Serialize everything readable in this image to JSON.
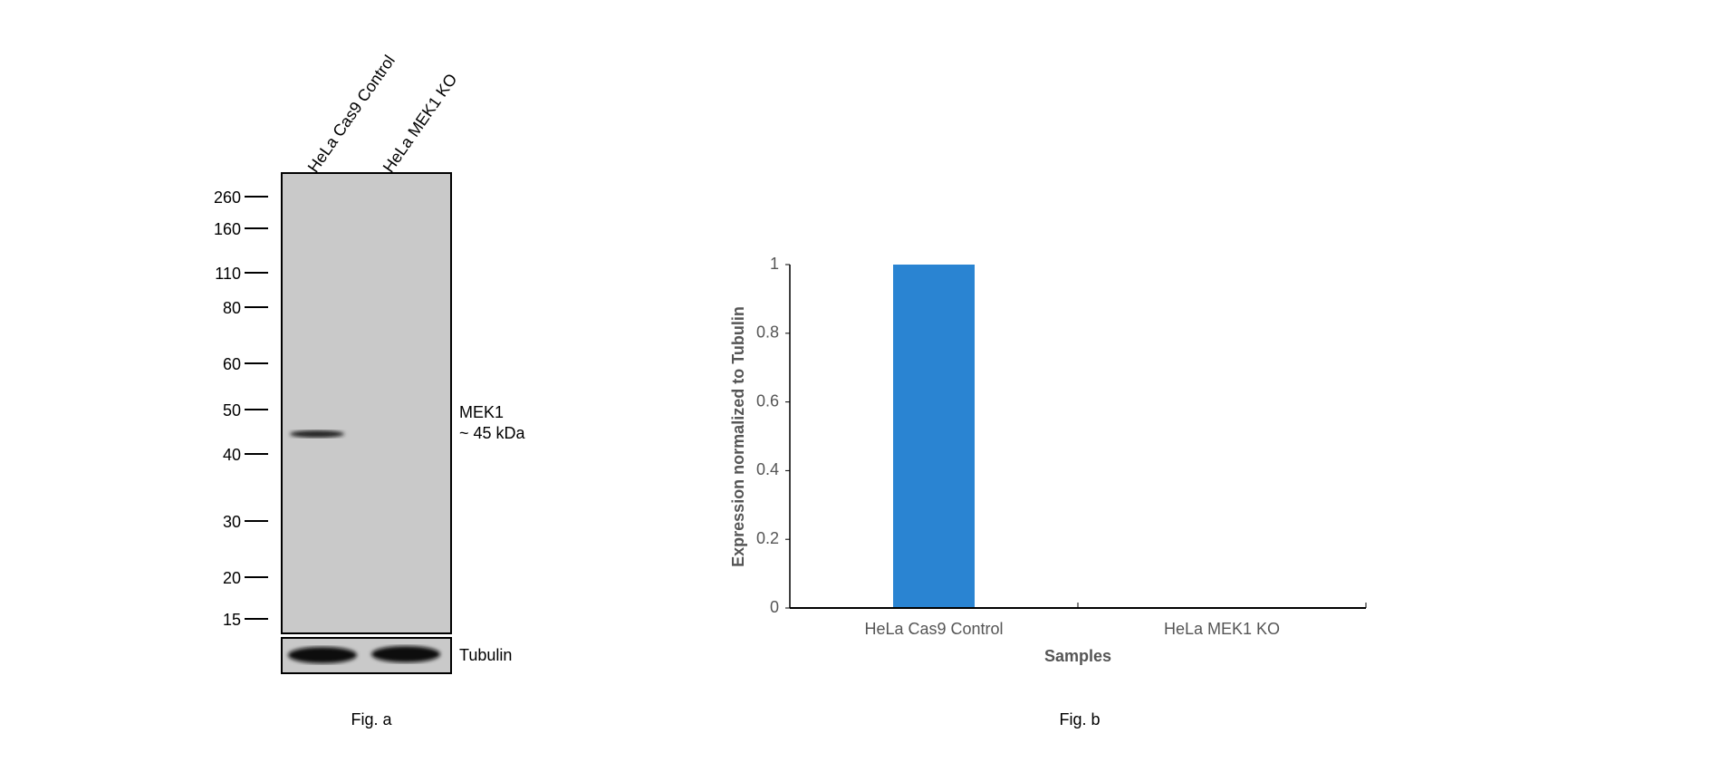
{
  "blot": {
    "lanes": [
      "HeLa Cas9 Control",
      "HeLa MEK1 KO"
    ],
    "markers": [
      260,
      160,
      110,
      80,
      60,
      50,
      40,
      30,
      20,
      15
    ],
    "band_name": "MEK1",
    "band_size": "~ 45 kDa",
    "loading_control": "Tubulin",
    "caption": "Fig. a"
  },
  "chart_data": {
    "type": "bar",
    "categories": [
      "HeLa Cas9 Control",
      "HeLa MEK1 KO"
    ],
    "values": [
      1,
      0
    ],
    "color": "#2a84d2",
    "ylim": [
      0,
      1
    ],
    "yticks": [
      0,
      0.2,
      0.4,
      0.6,
      0.8,
      1
    ],
    "ylabel": "Expression normalized to Tubulin",
    "xlabel": "Samples",
    "caption": "Fig. b"
  }
}
